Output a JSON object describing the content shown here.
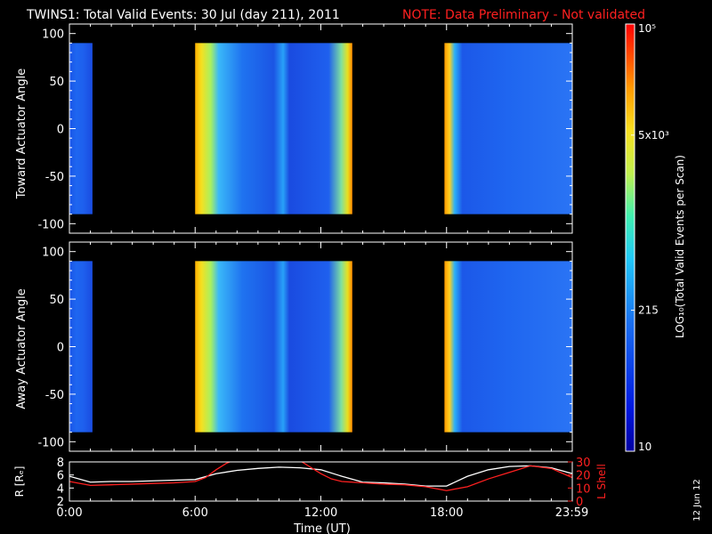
{
  "header": {
    "title": "TWINS1: Total Valid Events: 30 Jul (day 211), 2011",
    "note": "NOTE: Data Preliminary - Not validated",
    "note_color": "#ff2020"
  },
  "side_date": "12 Jun 12",
  "chart_data": [
    {
      "type": "heatmap",
      "panel": "top",
      "ylabel": "Toward Actuator Angle",
      "ylim": [
        -110,
        110
      ],
      "y_ticks": [
        "100",
        "50",
        "0",
        "-50",
        "-100"
      ],
      "x_range_hours": [
        0,
        24
      ],
      "data_y_range": [
        -90,
        90
      ],
      "segments": [
        {
          "start_hour": 0.0,
          "end_hour": 1.1,
          "profile": [
            [
              0,
              "#1a55e8"
            ],
            [
              0.3,
              "#1e66f0"
            ],
            [
              0.6,
              "#1e60ee"
            ],
            [
              1,
              "#1a4ce0"
            ]
          ]
        },
        {
          "start_hour": 6.0,
          "end_hour": 13.5,
          "profile": [
            [
              0,
              "#ffb000"
            ],
            [
              0.04,
              "#f6e020"
            ],
            [
              0.1,
              "#a8f060"
            ],
            [
              0.15,
              "#3ab8f8"
            ],
            [
              0.3,
              "#1f73f0"
            ],
            [
              0.5,
              "#1b55e4"
            ],
            [
              0.56,
              "#28a0f8"
            ],
            [
              0.6,
              "#1a4be0"
            ],
            [
              0.85,
              "#1f60ee"
            ],
            [
              0.93,
              "#7ee0a0"
            ],
            [
              0.97,
              "#e8e020"
            ],
            [
              1,
              "#ff8800"
            ]
          ]
        },
        {
          "start_hour": 17.9,
          "end_hour": 24.0,
          "profile": [
            [
              0,
              "#ff9a00"
            ],
            [
              0.04,
              "#ffd020"
            ],
            [
              0.08,
              "#2bb0f8"
            ],
            [
              0.14,
              "#1c58e8"
            ],
            [
              0.5,
              "#1f66f0"
            ],
            [
              1,
              "#2a74f4"
            ]
          ]
        }
      ]
    },
    {
      "type": "heatmap",
      "panel": "middle",
      "ylabel": "Away Actuator Angle",
      "ylim": [
        -110,
        110
      ],
      "y_ticks": [
        "100",
        "50",
        "0",
        "-50",
        "-100"
      ],
      "x_range_hours": [
        0,
        24
      ],
      "data_y_range": [
        -90,
        90
      ],
      "segments": [
        {
          "start_hour": 0.0,
          "end_hour": 1.1,
          "profile": [
            [
              0,
              "#1a55e8"
            ],
            [
              0.3,
              "#1e66f0"
            ],
            [
              0.6,
              "#1e60ee"
            ],
            [
              1,
              "#1a4ce0"
            ]
          ]
        },
        {
          "start_hour": 6.0,
          "end_hour": 13.5,
          "profile": [
            [
              0,
              "#ffb000"
            ],
            [
              0.04,
              "#f6e020"
            ],
            [
              0.1,
              "#a8f060"
            ],
            [
              0.15,
              "#3ab8f8"
            ],
            [
              0.3,
              "#1f73f0"
            ],
            [
              0.5,
              "#1b55e4"
            ],
            [
              0.56,
              "#28a0f8"
            ],
            [
              0.6,
              "#1a4be0"
            ],
            [
              0.85,
              "#1f60ee"
            ],
            [
              0.93,
              "#7ee0a0"
            ],
            [
              0.97,
              "#e8e020"
            ],
            [
              1,
              "#ff8800"
            ]
          ]
        },
        {
          "start_hour": 17.9,
          "end_hour": 24.0,
          "profile": [
            [
              0,
              "#ff9a00"
            ],
            [
              0.04,
              "#ffd020"
            ],
            [
              0.08,
              "#2bb0f8"
            ],
            [
              0.14,
              "#1c58e8"
            ],
            [
              0.5,
              "#1f66f0"
            ],
            [
              1,
              "#2a74f4"
            ]
          ]
        }
      ]
    },
    {
      "type": "line",
      "panel": "bottom",
      "ylabel": "R [Rₑ]",
      "ylabel_right": "L Shell",
      "xlabel": "Time (UT)",
      "x_ticks": [
        "0:00",
        "6:00",
        "12:00",
        "18:00",
        "23:59"
      ],
      "x_tick_hours": [
        0,
        6,
        12,
        18,
        23.98
      ],
      "ylim": [
        2,
        8
      ],
      "y_ticks": [
        "8",
        "6",
        "4",
        "2"
      ],
      "ylim_right": [
        0,
        30
      ],
      "y_ticks_right": [
        "30",
        "20",
        "10",
        "0"
      ],
      "series": [
        {
          "axis": "left",
          "color": "#ffffff",
          "x": [
            0,
            1,
            2,
            3,
            4,
            5,
            6,
            7,
            8,
            9,
            10,
            11,
            12,
            13,
            14,
            15,
            16,
            17,
            18,
            19,
            20,
            21,
            22,
            23,
            24
          ],
          "y": [
            5.8,
            4.9,
            5.0,
            5.0,
            5.1,
            5.2,
            5.3,
            6.2,
            6.7,
            7.0,
            7.2,
            7.1,
            6.8,
            5.8,
            4.9,
            4.8,
            4.6,
            4.3,
            4.3,
            5.8,
            6.8,
            7.3,
            7.4,
            7.1,
            6.2
          ]
        },
        {
          "axis": "right",
          "color": "#ff2020",
          "x": [
            0,
            1,
            2,
            3,
            4,
            5,
            6,
            6.5,
            7,
            7.5,
            7.8
          ],
          "y": [
            15,
            12,
            12.5,
            13,
            13.5,
            14,
            15,
            18,
            24,
            29,
            31
          ]
        },
        {
          "axis": "right",
          "color": "#ff2020",
          "x": [
            11.0,
            11.5,
            12,
            12.5,
            13,
            14,
            15,
            16,
            17,
            18,
            19,
            20,
            21,
            22,
            23,
            24
          ],
          "y": [
            31,
            26,
            21,
            17,
            15,
            14,
            13,
            12.5,
            11,
            8,
            11,
            17,
            22,
            27,
            25,
            18
          ]
        }
      ]
    },
    {
      "type": "colorbar",
      "label": "LOG₁₀(Total Valid Events per Scan)",
      "tick_labels": [
        "10⁵",
        "5x10³",
        "215",
        "10"
      ],
      "tick_fracs": [
        1.0,
        0.74,
        0.33,
        0.0
      ],
      "stops": [
        [
          0,
          "#0000a0"
        ],
        [
          0.1,
          "#0018e0"
        ],
        [
          0.3,
          "#1a6ff0"
        ],
        [
          0.45,
          "#20c8f8"
        ],
        [
          0.55,
          "#40f0b0"
        ],
        [
          0.65,
          "#c0f050"
        ],
        [
          0.75,
          "#f8e020"
        ],
        [
          0.85,
          "#ff9a00"
        ],
        [
          1,
          "#ff0000"
        ]
      ]
    }
  ]
}
